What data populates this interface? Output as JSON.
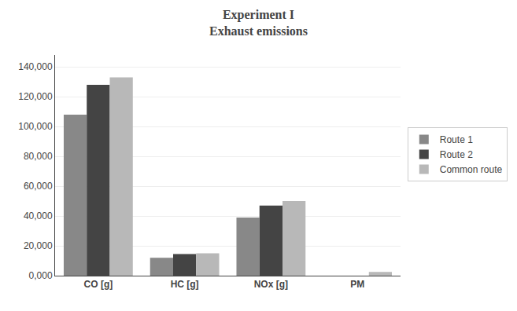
{
  "chart_data": {
    "type": "bar",
    "title": "Experiment I\nExhaust emissions",
    "categories": [
      "CO [g]",
      "HC [g]",
      "NOx [g]",
      "PM"
    ],
    "series": [
      {
        "name": "Route 1",
        "color": "#888888",
        "values": [
          108000,
          12000,
          39000,
          0
        ]
      },
      {
        "name": "Route 2",
        "color": "#444444",
        "values": [
          128000,
          14500,
          47000,
          0
        ]
      },
      {
        "name": "Common route",
        "color": "#b8b8b8",
        "values": [
          133000,
          15000,
          50000,
          2500
        ]
      }
    ],
    "ylim": [
      0,
      148000
    ],
    "yticks": [
      {
        "value": 0,
        "label": "0,000"
      },
      {
        "value": 20000,
        "label": "20,000"
      },
      {
        "value": 40000,
        "label": "40,000"
      },
      {
        "value": 60000,
        "label": "60,000"
      },
      {
        "value": 80000,
        "label": "80,000"
      },
      {
        "value": 100000,
        "label": "100,000"
      },
      {
        "value": 120000,
        "label": "120,000"
      },
      {
        "value": 140000,
        "label": "140,000"
      }
    ],
    "grid": true,
    "legend": "right"
  }
}
